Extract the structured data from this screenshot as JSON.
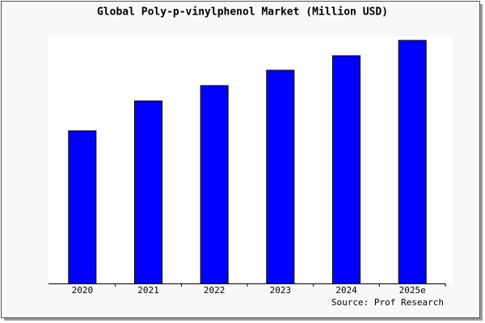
{
  "chart_data": {
    "type": "bar",
    "title": "Global Poly-p-vinylphenol Market (Million USD)",
    "categories": [
      "2020",
      "2021",
      "2022",
      "2023",
      "2024",
      "2025e"
    ],
    "values": [
      189,
      226,
      245,
      264,
      282,
      301
    ],
    "color": "#0000ff",
    "ylim": [
      0,
      306
    ],
    "source": "Source: Prof Research"
  }
}
